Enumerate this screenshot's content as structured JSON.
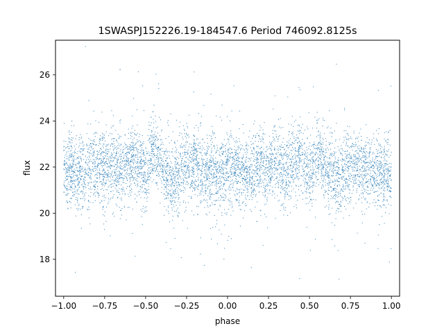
{
  "chart_data": {
    "type": "scatter",
    "title": "1SWASPJ152226.19-184547.6 Period 746092.8125s",
    "xlabel": "phase",
    "ylabel": "flux",
    "xlim": [
      -1.05,
      1.05
    ],
    "ylim": [
      16.4,
      27.5
    ],
    "x_ticks": [
      -1.0,
      -0.75,
      -0.5,
      -0.25,
      0.0,
      0.25,
      0.5,
      0.75,
      1.0
    ],
    "x_tick_labels": [
      "−1.00",
      "−0.75",
      "−0.50",
      "−0.25",
      "0.00",
      "0.25",
      "0.50",
      "0.75",
      "1.00"
    ],
    "y_ticks": [
      18,
      20,
      22,
      24,
      26
    ],
    "y_tick_labels": [
      "18",
      "20",
      "22",
      "24",
      "26"
    ],
    "grid": false,
    "legend": "none",
    "point_color": "#1f77b4",
    "series": [
      {
        "x": [
          -1.0,
          -0.95,
          -0.9,
          -0.85,
          -0.8,
          -0.75,
          -0.7,
          -0.65,
          -0.6,
          -0.55,
          -0.5,
          -0.45,
          -0.4,
          -0.35,
          -0.3,
          -0.25,
          -0.2,
          -0.15,
          -0.1,
          -0.05,
          0.0,
          0.05,
          0.1,
          0.15,
          0.2,
          0.25,
          0.3,
          0.35,
          0.4,
          0.45,
          0.5,
          0.55,
          0.6,
          0.65,
          0.7,
          0.75,
          0.8,
          0.85,
          0.9,
          0.95,
          1.0
        ],
        "y": [
          21.8,
          22.0,
          21.7,
          21.9,
          22.1,
          21.9,
          22.2,
          21.8,
          22.3,
          22.4,
          21.6,
          22.8,
          22.0,
          21.4,
          21.7,
          22.2,
          22.1,
          21.8,
          21.9,
          21.7,
          21.8,
          22.0,
          21.7,
          21.9,
          22.1,
          21.9,
          22.2,
          21.8,
          22.3,
          22.4,
          21.6,
          22.8,
          22.0,
          21.4,
          21.7,
          22.2,
          22.1,
          21.8,
          21.9,
          21.7,
          21.8
        ]
      }
    ]
  }
}
